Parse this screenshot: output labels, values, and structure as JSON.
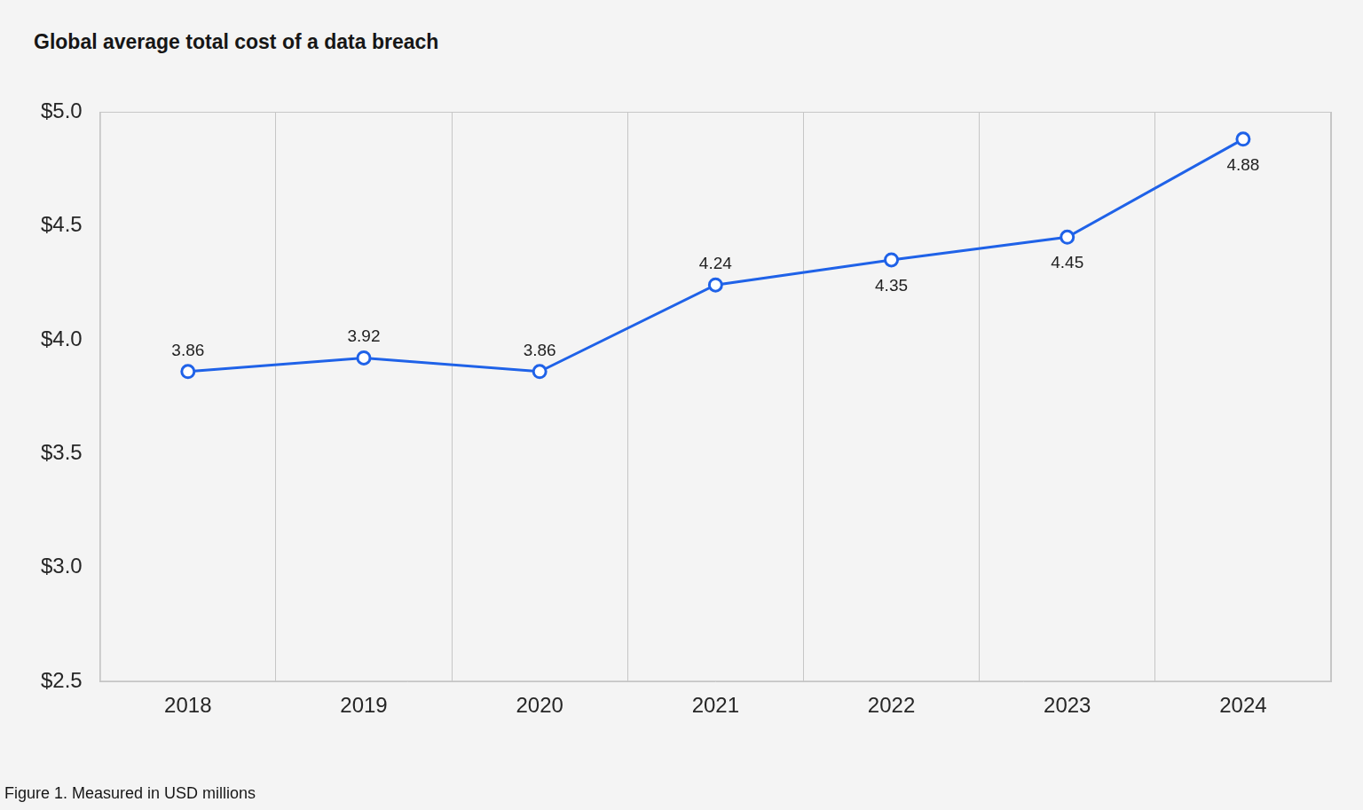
{
  "chart_data": {
    "type": "line",
    "title": "Global average total cost of a data breach",
    "caption": "Figure 1. Measured in USD millions",
    "categories": [
      "2018",
      "2019",
      "2020",
      "2021",
      "2022",
      "2023",
      "2024"
    ],
    "values": [
      3.86,
      3.92,
      3.86,
      4.24,
      4.35,
      4.45,
      4.88
    ],
    "color": "#1f62e8",
    "marker": "circle",
    "ylim": [
      2.5,
      5.0
    ],
    "yticks": [
      {
        "value": 2.5,
        "label": "$2.5"
      },
      {
        "value": 3.0,
        "label": "$3.0"
      },
      {
        "value": 3.5,
        "label": "$3.5"
      },
      {
        "value": 4.0,
        "label": "$4.0"
      },
      {
        "value": 4.5,
        "label": "$4.5"
      },
      {
        "value": 5.0,
        "label": "$5.0"
      }
    ],
    "grid": true,
    "data_labels": true
  }
}
